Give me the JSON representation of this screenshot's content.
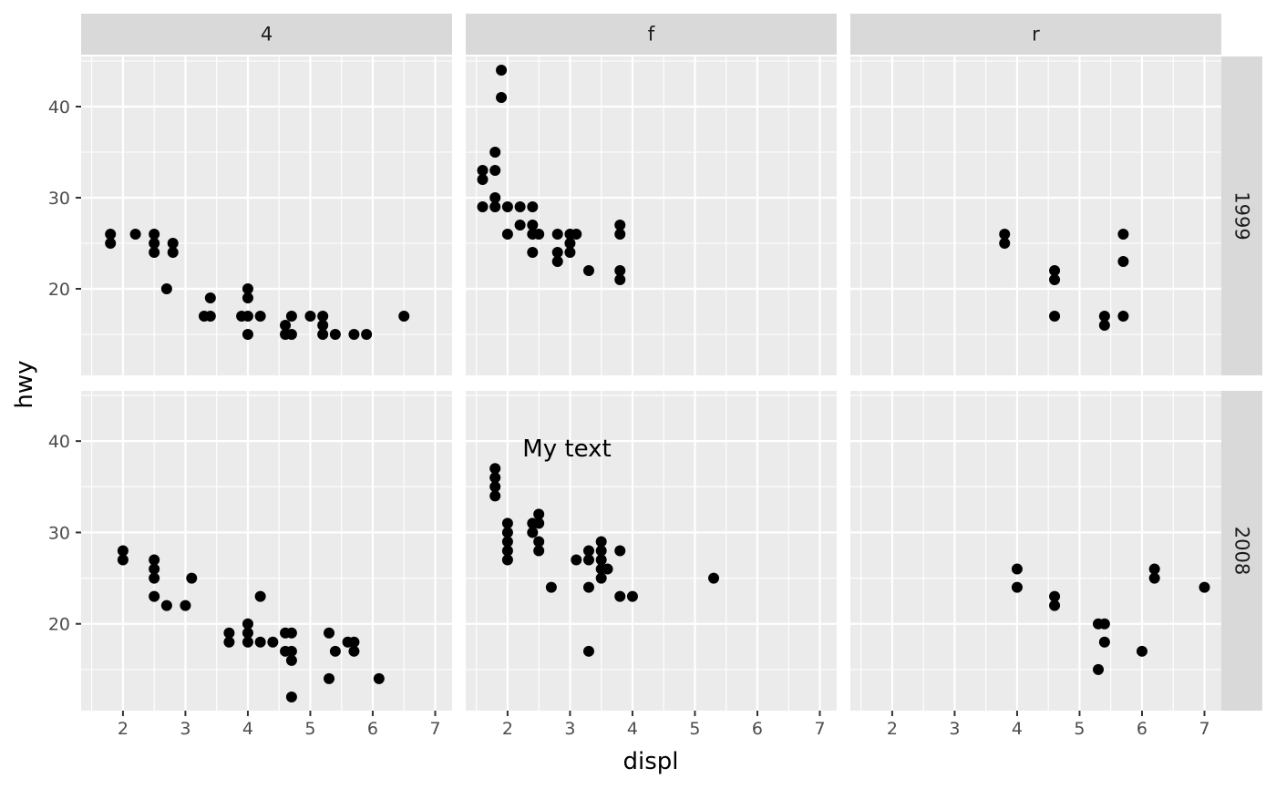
{
  "chart_data": {
    "type": "scatter",
    "xlabel": "displ",
    "ylabel": "hwy",
    "xlim": [
      1.33,
      7.27
    ],
    "ylim": [
      10.5,
      45.5
    ],
    "x_ticks": [
      2,
      3,
      4,
      5,
      6,
      7
    ],
    "y_ticks": [
      20,
      30,
      40
    ],
    "grid": true,
    "facet_cols": [
      "4",
      "f",
      "r"
    ],
    "facet_rows": [
      "1999",
      "2008"
    ],
    "colors": {
      "panel_bg": "#ebebeb",
      "grid": "#ffffff",
      "strip_bg": "#d9d9d9",
      "point": "#000000"
    },
    "annotations": [
      {
        "panel": "f-2008",
        "x": 2.95,
        "y": 39.2,
        "text": "My text"
      }
    ],
    "panels": [
      {
        "col": "4",
        "row": "1999",
        "points": [
          [
            1.8,
            26
          ],
          [
            1.8,
            25
          ],
          [
            2.2,
            26
          ],
          [
            2.5,
            26
          ],
          [
            2.5,
            25
          ],
          [
            2.5,
            24
          ],
          [
            2.8,
            25
          ],
          [
            2.8,
            24
          ],
          [
            2.7,
            20
          ],
          [
            3.3,
            17
          ],
          [
            3.4,
            19
          ],
          [
            3.4,
            17
          ],
          [
            4.0,
            20
          ],
          [
            4.0,
            19
          ],
          [
            4.0,
            17
          ],
          [
            4.0,
            15
          ],
          [
            3.9,
            17
          ],
          [
            4.2,
            17
          ],
          [
            4.6,
            16
          ],
          [
            4.6,
            15
          ],
          [
            4.7,
            17
          ],
          [
            4.7,
            15
          ],
          [
            5.0,
            17
          ],
          [
            5.2,
            17
          ],
          [
            5.2,
            16
          ],
          [
            5.2,
            15
          ],
          [
            5.4,
            15
          ],
          [
            5.7,
            15
          ],
          [
            5.9,
            15
          ],
          [
            6.5,
            17
          ]
        ]
      },
      {
        "col": "f",
        "row": "1999",
        "points": [
          [
            1.9,
            44
          ],
          [
            1.9,
            41
          ],
          [
            1.8,
            35
          ],
          [
            1.6,
            33
          ],
          [
            1.8,
            33
          ],
          [
            1.6,
            32
          ],
          [
            1.8,
            30
          ],
          [
            1.6,
            29
          ],
          [
            1.8,
            29
          ],
          [
            2.0,
            29
          ],
          [
            2.2,
            29
          ],
          [
            2.4,
            29
          ],
          [
            2.2,
            27
          ],
          [
            2.4,
            27
          ],
          [
            2.0,
            26
          ],
          [
            2.4,
            26
          ],
          [
            2.5,
            26
          ],
          [
            2.8,
            26
          ],
          [
            3.0,
            26
          ],
          [
            3.1,
            26
          ],
          [
            2.4,
            24
          ],
          [
            2.8,
            24
          ],
          [
            3.0,
            24
          ],
          [
            3.0,
            25
          ],
          [
            2.8,
            23
          ],
          [
            3.3,
            22
          ],
          [
            3.8,
            27
          ],
          [
            3.8,
            26
          ],
          [
            3.8,
            22
          ],
          [
            3.8,
            21
          ]
        ]
      },
      {
        "col": "r",
        "row": "1999",
        "points": [
          [
            3.8,
            26
          ],
          [
            3.8,
            25
          ],
          [
            4.6,
            22
          ],
          [
            4.6,
            21
          ],
          [
            4.6,
            17
          ],
          [
            5.4,
            17
          ],
          [
            5.4,
            16
          ],
          [
            5.7,
            26
          ],
          [
            5.7,
            23
          ],
          [
            5.7,
            17
          ]
        ]
      },
      {
        "col": "4",
        "row": "2008",
        "points": [
          [
            2.0,
            28
          ],
          [
            2.0,
            27
          ],
          [
            2.5,
            27
          ],
          [
            2.5,
            26
          ],
          [
            2.5,
            25
          ],
          [
            2.5,
            23
          ],
          [
            3.1,
            25
          ],
          [
            2.7,
            22
          ],
          [
            3.0,
            22
          ],
          [
            3.7,
            19
          ],
          [
            3.7,
            18
          ],
          [
            4.0,
            20
          ],
          [
            4.0,
            19
          ],
          [
            4.0,
            18
          ],
          [
            4.2,
            23
          ],
          [
            4.2,
            18
          ],
          [
            4.4,
            18
          ],
          [
            4.6,
            19
          ],
          [
            4.6,
            17
          ],
          [
            4.7,
            19
          ],
          [
            4.7,
            17
          ],
          [
            4.7,
            16
          ],
          [
            4.7,
            12
          ],
          [
            5.3,
            19
          ],
          [
            5.3,
            14
          ],
          [
            5.4,
            17
          ],
          [
            5.6,
            18
          ],
          [
            5.7,
            18
          ],
          [
            5.7,
            17
          ],
          [
            6.1,
            14
          ]
        ]
      },
      {
        "col": "f",
        "row": "2008",
        "points": [
          [
            1.8,
            37
          ],
          [
            1.8,
            36
          ],
          [
            1.8,
            35
          ],
          [
            1.8,
            34
          ],
          [
            2.0,
            31
          ],
          [
            2.0,
            30
          ],
          [
            2.0,
            29
          ],
          [
            2.0,
            28
          ],
          [
            2.0,
            27
          ],
          [
            2.4,
            31
          ],
          [
            2.4,
            30
          ],
          [
            2.5,
            32
          ],
          [
            2.5,
            31
          ],
          [
            2.5,
            29
          ],
          [
            2.5,
            28
          ],
          [
            2.7,
            24
          ],
          [
            3.1,
            27
          ],
          [
            3.3,
            28
          ],
          [
            3.3,
            27
          ],
          [
            3.3,
            24
          ],
          [
            3.3,
            17
          ],
          [
            3.5,
            29
          ],
          [
            3.5,
            28
          ],
          [
            3.5,
            27
          ],
          [
            3.5,
            26
          ],
          [
            3.5,
            25
          ],
          [
            3.6,
            26
          ],
          [
            3.8,
            28
          ],
          [
            3.8,
            23
          ],
          [
            4.0,
            23
          ],
          [
            5.3,
            25
          ]
        ]
      },
      {
        "col": "r",
        "row": "2008",
        "points": [
          [
            4.0,
            26
          ],
          [
            4.0,
            24
          ],
          [
            4.6,
            23
          ],
          [
            4.6,
            22
          ],
          [
            5.3,
            20
          ],
          [
            5.3,
            15
          ],
          [
            5.4,
            20
          ],
          [
            5.4,
            18
          ],
          [
            6.0,
            17
          ],
          [
            6.2,
            26
          ],
          [
            6.2,
            25
          ],
          [
            7.0,
            24
          ]
        ]
      }
    ]
  }
}
